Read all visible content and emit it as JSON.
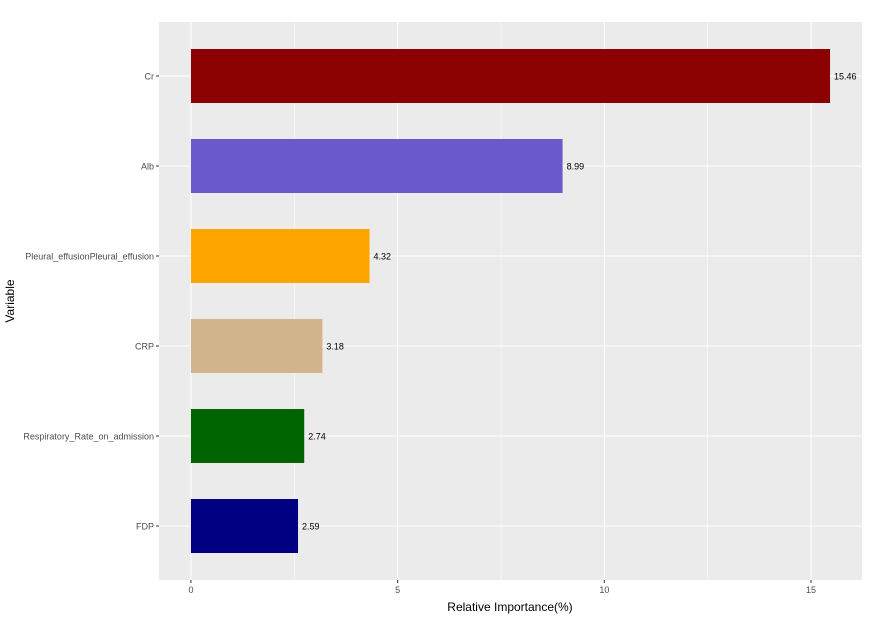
{
  "chart_data": {
    "type": "bar",
    "orientation": "horizontal",
    "title": "",
    "xlabel": "Relative Importance(%)",
    "ylabel": "Variable",
    "categories": [
      "Cr",
      "Alb",
      "Pleural_effusionPleural_effusion",
      "CRP",
      "Respiratory_Rate_on_admission",
      "FDP"
    ],
    "values": [
      15.46,
      8.99,
      4.32,
      3.18,
      2.74,
      2.59
    ],
    "data_labels": [
      "15.46",
      "8.99",
      "4.32",
      "3.18",
      "2.74",
      "2.59"
    ],
    "colors": [
      "#8B0000",
      "#6A5ACD",
      "#FFA500",
      "#D2B48C",
      "#006400",
      "#000080"
    ],
    "xlim": [
      -0.773,
      16.233
    ],
    "xticks": [
      0,
      5,
      10,
      15
    ],
    "xtick_labels": [
      "0",
      "5",
      "10",
      "15"
    ],
    "grid": true,
    "panel_background": "#EBEBEB",
    "legend": "none"
  }
}
